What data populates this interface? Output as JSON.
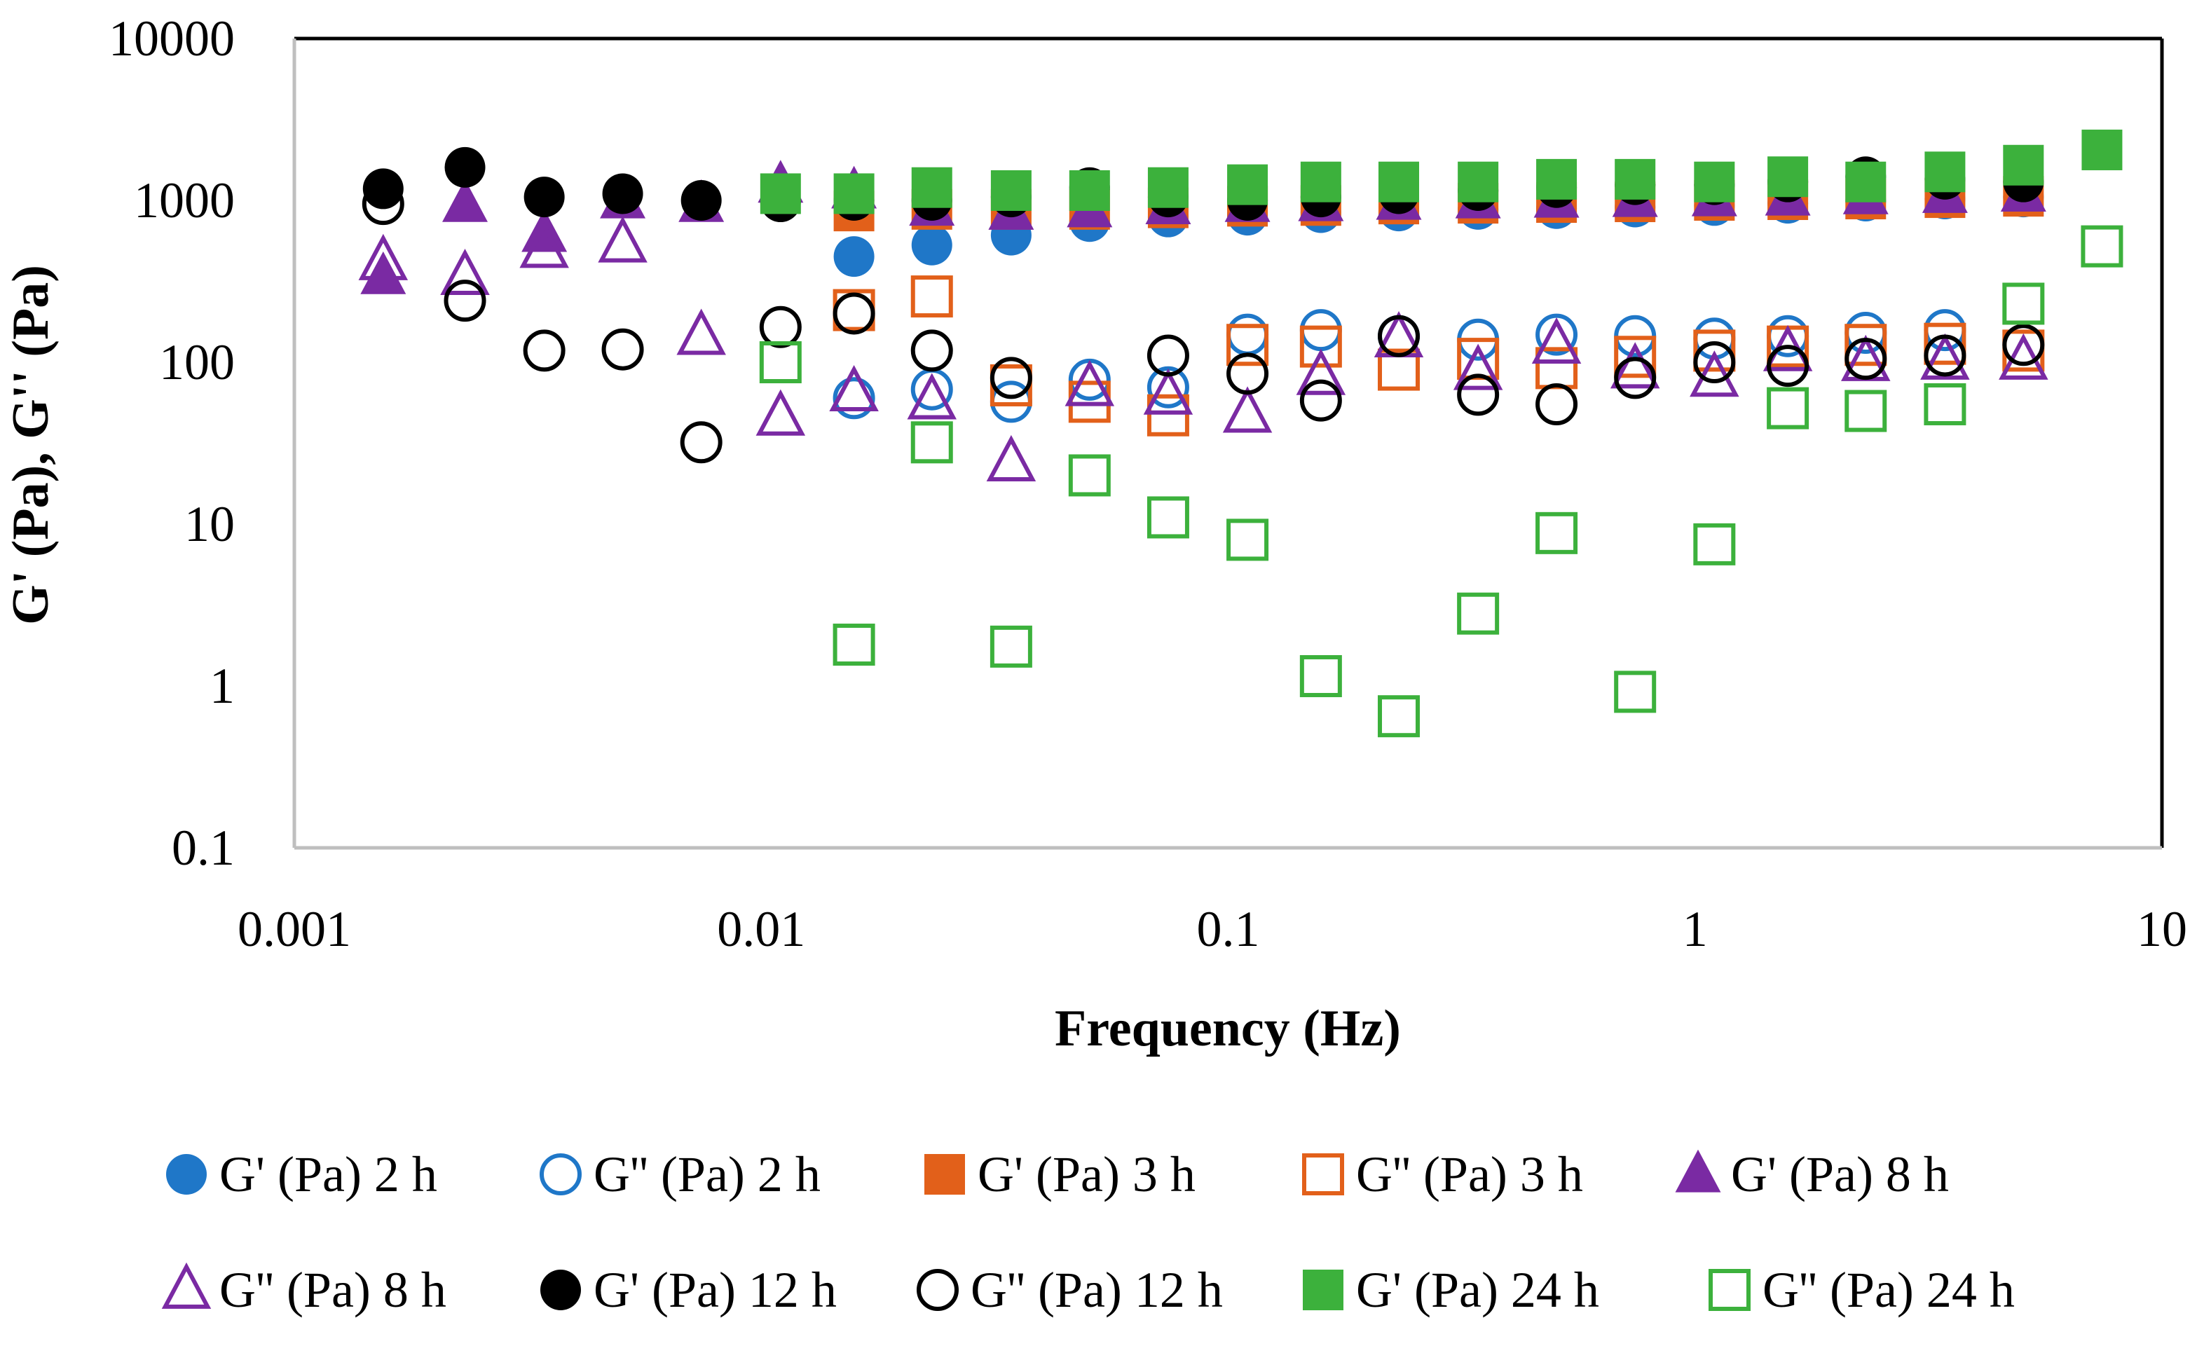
{
  "chart_data": {
    "type": "scatter",
    "title": "",
    "xlabel": "Frequency (Hz)",
    "ylabel": "G' (Pa), G'' (Pa)",
    "xscale": "log",
    "yscale": "log",
    "xlim": [
      0.001,
      10
    ],
    "ylim": [
      0.1,
      10000
    ],
    "grid": false,
    "legend_position": "bottom",
    "x_ticks": [
      {
        "value": 0.001,
        "label": "0.001"
      },
      {
        "value": 0.01,
        "label": "0.01"
      },
      {
        "value": 0.1,
        "label": "0.1"
      },
      {
        "value": 1,
        "label": "1"
      },
      {
        "value": 10,
        "label": "10"
      }
    ],
    "y_ticks": [
      {
        "value": 0.1,
        "label": "0.1"
      },
      {
        "value": 1,
        "label": "1"
      },
      {
        "value": 10,
        "label": "10"
      },
      {
        "value": 100,
        "label": "100"
      },
      {
        "value": 1000,
        "label": "1000"
      },
      {
        "value": 10000,
        "label": "10000"
      }
    ],
    "series": [
      {
        "name": "G' (Pa) 2 h",
        "marker": "circle",
        "filled": true,
        "color": "#1f77c8",
        "points": [
          [
            0.0158,
            450
          ],
          [
            0.0232,
            530
          ],
          [
            0.0343,
            610
          ],
          [
            0.0505,
            740
          ],
          [
            0.0744,
            790
          ],
          [
            0.11,
            810
          ],
          [
            0.158,
            840
          ],
          [
            0.232,
            860
          ],
          [
            0.343,
            880
          ],
          [
            0.505,
            890
          ],
          [
            0.744,
            910
          ],
          [
            1.1,
            930
          ],
          [
            1.58,
            960
          ],
          [
            2.32,
            990
          ],
          [
            3.43,
            1020
          ],
          [
            5.05,
            1050
          ]
        ]
      },
      {
        "name": "G'' (Pa) 2 h",
        "marker": "circle",
        "filled": false,
        "color": "#1f77c8",
        "points": [
          [
            0.0158,
            60
          ],
          [
            0.0232,
            68
          ],
          [
            0.0343,
            57
          ],
          [
            0.0505,
            78
          ],
          [
            0.0744,
            70
          ],
          [
            0.11,
            148
          ],
          [
            0.158,
            158
          ],
          [
            0.232,
            145
          ],
          [
            0.343,
            138
          ],
          [
            0.505,
            148
          ],
          [
            0.744,
            145
          ],
          [
            1.1,
            140
          ],
          [
            1.58,
            145
          ],
          [
            2.32,
            152
          ],
          [
            3.43,
            158
          ]
        ]
      },
      {
        "name": "G' (Pa) 3 h",
        "marker": "square",
        "filled": true,
        "color": "#e2601a",
        "points": [
          [
            0.0158,
            860
          ],
          [
            0.0232,
            880
          ],
          [
            0.0343,
            880
          ],
          [
            0.0505,
            880
          ],
          [
            0.0744,
            900
          ],
          [
            0.11,
            920
          ],
          [
            0.158,
            930
          ],
          [
            0.232,
            950
          ],
          [
            0.343,
            960
          ],
          [
            0.505,
            970
          ],
          [
            0.744,
            980
          ],
          [
            1.1,
            1000
          ],
          [
            1.58,
            1010
          ],
          [
            2.32,
            1020
          ],
          [
            3.43,
            1040
          ],
          [
            5.05,
            1060
          ]
        ]
      },
      {
        "name": "G'' (Pa) 3 h",
        "marker": "square",
        "filled": false,
        "color": "#e2601a",
        "points": [
          [
            0.0158,
            210
          ],
          [
            0.0232,
            255
          ],
          [
            0.0343,
            72
          ],
          [
            0.0505,
            57
          ],
          [
            0.0744,
            47
          ],
          [
            0.11,
            128
          ],
          [
            0.158,
            125
          ],
          [
            0.232,
            90
          ],
          [
            0.343,
            105
          ],
          [
            0.505,
            92
          ],
          [
            0.744,
            108
          ],
          [
            1.1,
            118
          ],
          [
            1.58,
            125
          ],
          [
            2.32,
            128
          ],
          [
            3.43,
            130
          ],
          [
            5.05,
            118
          ]
        ]
      },
      {
        "name": "G' (Pa) 8 h",
        "marker": "triangle",
        "filled": true,
        "color": "#7a2aa3",
        "points": [
          [
            0.00155,
            340
          ],
          [
            0.00232,
            950
          ],
          [
            0.00343,
            620
          ],
          [
            0.00505,
            1000
          ],
          [
            0.00744,
            950
          ],
          [
            0.011,
            1250
          ],
          [
            0.0158,
            1150
          ],
          [
            0.0232,
            900
          ],
          [
            0.0343,
            850
          ],
          [
            0.0505,
            880
          ],
          [
            0.0744,
            920
          ],
          [
            0.11,
            950
          ],
          [
            0.158,
            960
          ],
          [
            0.232,
            980
          ],
          [
            0.343,
            1000
          ],
          [
            0.505,
            1010
          ],
          [
            0.744,
            1020
          ],
          [
            1.1,
            1030
          ],
          [
            1.58,
            1040
          ],
          [
            2.32,
            1060
          ],
          [
            3.43,
            1080
          ],
          [
            5.05,
            1100
          ]
        ]
      },
      {
        "name": "G'' (Pa) 8 h",
        "marker": "triangle",
        "filled": false,
        "color": "#7a2aa3",
        "points": [
          [
            0.00155,
            420
          ],
          [
            0.00232,
            340
          ],
          [
            0.00343,
            500
          ],
          [
            0.00505,
            540
          ],
          [
            0.00744,
            145
          ],
          [
            0.011,
            46
          ],
          [
            0.0158,
            65
          ],
          [
            0.0232,
            58
          ],
          [
            0.0343,
            24
          ],
          [
            0.0505,
            70
          ],
          [
            0.0744,
            62
          ],
          [
            0.11,
            48
          ],
          [
            0.158,
            82
          ],
          [
            0.232,
            140
          ],
          [
            0.343,
            88
          ],
          [
            0.505,
            128
          ],
          [
            0.744,
            90
          ],
          [
            1.1,
            80
          ],
          [
            1.58,
            115
          ],
          [
            2.32,
            100
          ],
          [
            3.43,
            102
          ],
          [
            5.05,
            102
          ]
        ]
      },
      {
        "name": "G' (Pa) 12 h",
        "marker": "circle",
        "filled": true,
        "color": "#000000",
        "points": [
          [
            0.00155,
            1180
          ],
          [
            0.00232,
            1600
          ],
          [
            0.00343,
            1050
          ],
          [
            0.00505,
            1100
          ],
          [
            0.00744,
            1000
          ],
          [
            0.011,
            980
          ],
          [
            0.0158,
            1000
          ],
          [
            0.0232,
            1000
          ],
          [
            0.0343,
            1050
          ],
          [
            0.0505,
            1200
          ],
          [
            0.0744,
            1050
          ],
          [
            0.11,
            1000
          ],
          [
            0.158,
            1050
          ],
          [
            0.232,
            1100
          ],
          [
            0.343,
            1150
          ],
          [
            0.505,
            1200
          ],
          [
            0.744,
            1250
          ],
          [
            1.1,
            1250
          ],
          [
            1.58,
            1300
          ],
          [
            2.32,
            1400
          ],
          [
            3.43,
            1350
          ],
          [
            5.05,
            1300
          ]
        ]
      },
      {
        "name": "G'' (Pa) 12 h",
        "marker": "circle",
        "filled": false,
        "color": "#000000",
        "points": [
          [
            0.00155,
            950
          ],
          [
            0.00232,
            240
          ],
          [
            0.00343,
            118
          ],
          [
            0.00505,
            120
          ],
          [
            0.00744,
            32
          ],
          [
            0.011,
            165
          ],
          [
            0.0158,
            200
          ],
          [
            0.0232,
            118
          ],
          [
            0.0343,
            80
          ],
          [
            0.0744,
            110
          ],
          [
            0.11,
            85
          ],
          [
            0.158,
            58
          ],
          [
            0.232,
            145
          ],
          [
            0.343,
            63
          ],
          [
            0.505,
            55
          ],
          [
            0.744,
            80
          ],
          [
            1.1,
            100
          ],
          [
            1.58,
            95
          ],
          [
            2.32,
            105
          ],
          [
            3.43,
            110
          ],
          [
            5.05,
            128
          ]
        ]
      },
      {
        "name": "G' (Pa) 24 h",
        "marker": "square",
        "filled": true,
        "color": "#3cb13c",
        "points": [
          [
            0.011,
            1100
          ],
          [
            0.0158,
            1100
          ],
          [
            0.0232,
            1200
          ],
          [
            0.0343,
            1150
          ],
          [
            0.0505,
            1150
          ],
          [
            0.0744,
            1200
          ],
          [
            0.11,
            1250
          ],
          [
            0.158,
            1300
          ],
          [
            0.232,
            1300
          ],
          [
            0.343,
            1300
          ],
          [
            0.505,
            1350
          ],
          [
            0.744,
            1350
          ],
          [
            1.1,
            1300
          ],
          [
            1.58,
            1400
          ],
          [
            2.32,
            1300
          ],
          [
            3.43,
            1500
          ],
          [
            5.05,
            1650
          ],
          [
            7.44,
            2050
          ]
        ]
      },
      {
        "name": "G'' (Pa) 24 h",
        "marker": "square",
        "filled": false,
        "color": "#3cb13c",
        "points": [
          [
            0.011,
            100
          ],
          [
            0.0158,
            1.8
          ],
          [
            0.0232,
            32
          ],
          [
            0.0343,
            1.75
          ],
          [
            0.0505,
            20
          ],
          [
            0.0744,
            11
          ],
          [
            0.11,
            8
          ],
          [
            0.158,
            1.15
          ],
          [
            0.232,
            0.65
          ],
          [
            0.343,
            2.8
          ],
          [
            0.505,
            8.8
          ],
          [
            0.744,
            0.92
          ],
          [
            1.1,
            7.5
          ],
          [
            1.58,
            52
          ],
          [
            2.32,
            50
          ],
          [
            3.43,
            55
          ],
          [
            5.05,
            230
          ],
          [
            7.44,
            520
          ]
        ]
      }
    ]
  }
}
